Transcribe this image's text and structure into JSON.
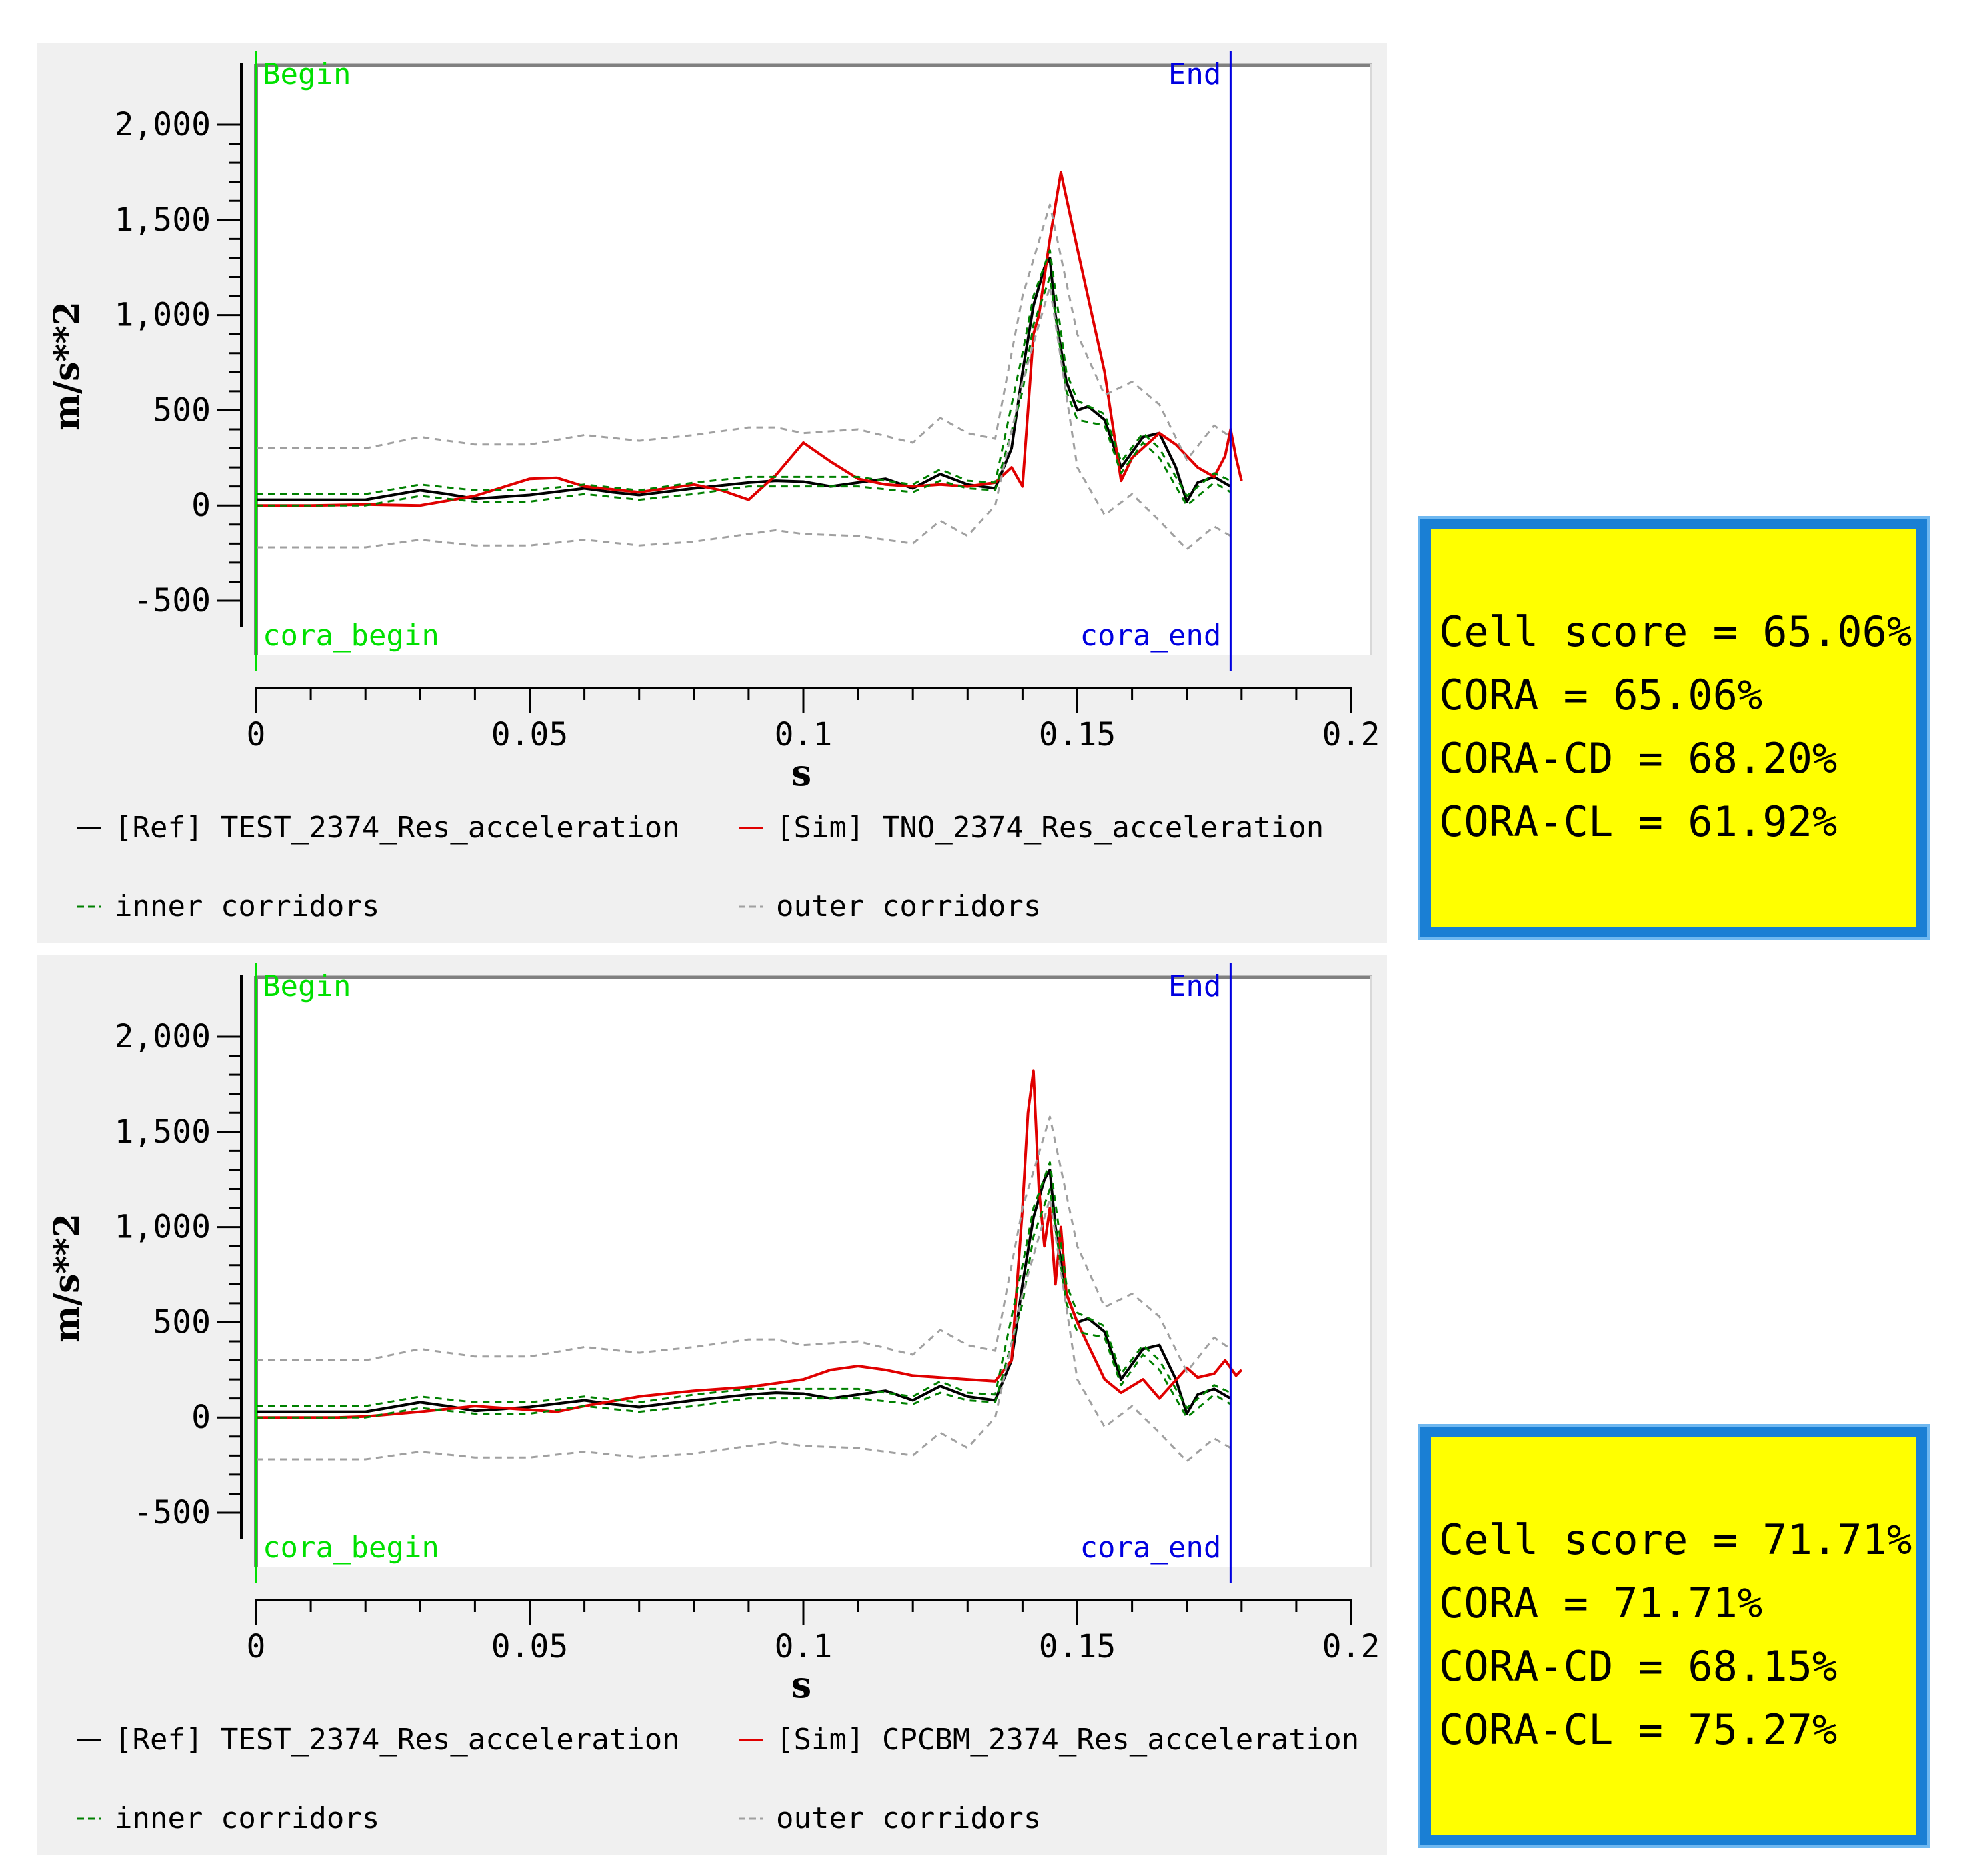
{
  "chart_data": [
    {
      "type": "line",
      "xlabel": "s",
      "ylabel": "m/s**2",
      "xlim": [
        0,
        0.2
      ],
      "ylim": [
        -500,
        2000
      ],
      "xticks": [
        "0",
        "0.05",
        "0.1",
        "0.15",
        "0.2"
      ],
      "yticks": [
        "2,000",
        "1,500",
        "1,000",
        "500",
        "0",
        "-500"
      ],
      "markers": [
        {
          "x": 0,
          "top_label": "Begin",
          "bottom_label": "cora_begin",
          "color": "#00e000"
        },
        {
          "x": 0.178,
          "top_label": "End",
          "bottom_label": "cora_end",
          "color": "#0000e0"
        }
      ],
      "legend": [
        {
          "label": "[Ref]  TEST_2374_Res_acceleration",
          "color": "#000000",
          "dash": "solid"
        },
        {
          "label": "[Sim]  TNO_2374_Res_acceleration",
          "color": "#e00000",
          "dash": "solid"
        },
        {
          "label": "inner corridors",
          "color": "#008000",
          "dash": "dashed"
        },
        {
          "label": "outer corridors",
          "color": "#a0a0a0",
          "dash": "dashed"
        }
      ],
      "series": [
        {
          "name": "[Ref]  TEST_2374_Res_acceleration",
          "color": "#000000",
          "x": [
            0,
            0.01,
            0.02,
            0.025,
            0.03,
            0.035,
            0.04,
            0.05,
            0.06,
            0.065,
            0.07,
            0.08,
            0.09,
            0.095,
            0.1,
            0.105,
            0.11,
            0.115,
            0.12,
            0.125,
            0.13,
            0.135,
            0.138,
            0.14,
            0.142,
            0.144,
            0.145,
            0.146,
            0.148,
            0.15,
            0.152,
            0.155,
            0.158,
            0.162,
            0.165,
            0.168,
            0.17,
            0.172,
            0.175,
            0.178
          ],
          "y": [
            30,
            30,
            30,
            55,
            80,
            60,
            35,
            55,
            90,
            70,
            55,
            90,
            120,
            130,
            125,
            100,
            120,
            140,
            90,
            165,
            110,
            90,
            300,
            700,
            1050,
            1250,
            1300,
            1000,
            650,
            500,
            520,
            450,
            200,
            360,
            380,
            200,
            20,
            120,
            150,
            100
          ]
        },
        {
          "name": "[Sim]  TNO_2374_Res_acceleration",
          "color": "#e00000",
          "x": [
            0,
            0.01,
            0.02,
            0.03,
            0.04,
            0.05,
            0.055,
            0.06,
            0.07,
            0.08,
            0.085,
            0.09,
            0.095,
            0.1,
            0.105,
            0.11,
            0.115,
            0.12,
            0.125,
            0.13,
            0.135,
            0.138,
            0.14,
            0.142,
            0.143,
            0.145,
            0.147,
            0.15,
            0.155,
            0.158,
            0.16,
            0.165,
            0.168,
            0.172,
            0.175,
            0.177,
            0.178,
            0.179,
            0.18
          ],
          "y": [
            0,
            0,
            5,
            0,
            50,
            140,
            145,
            100,
            70,
            110,
            80,
            30,
            160,
            330,
            230,
            140,
            110,
            100,
            110,
            100,
            120,
            200,
            100,
            900,
            1000,
            1400,
            1750,
            1350,
            700,
            130,
            250,
            380,
            320,
            200,
            150,
            260,
            400,
            250,
            130
          ]
        },
        {
          "name": "",
          "color": "#008000",
          "dash": true,
          "x": [
            0,
            0.02,
            0.03,
            0.04,
            0.05,
            0.06,
            0.07,
            0.08,
            0.09,
            0.1,
            0.11,
            0.12,
            0.125,
            0.13,
            0.135,
            0.14,
            0.142,
            0.145,
            0.148,
            0.15,
            0.155,
            0.158,
            0.162,
            0.165,
            0.17,
            0.175,
            0.178
          ],
          "y": [
            60,
            60,
            110,
            80,
            80,
            110,
            80,
            120,
            150,
            150,
            150,
            110,
            190,
            130,
            120,
            800,
            1100,
            1340,
            700,
            550,
            480,
            230,
            380,
            300,
            50,
            170,
            130
          ]
        },
        {
          "name": "",
          "color": "#008000",
          "dash": true,
          "x": [
            0,
            0.02,
            0.03,
            0.04,
            0.05,
            0.06,
            0.07,
            0.08,
            0.09,
            0.1,
            0.11,
            0.12,
            0.125,
            0.13,
            0.135,
            0.14,
            0.142,
            0.145,
            0.148,
            0.15,
            0.155,
            0.158,
            0.162,
            0.165,
            0.17,
            0.175,
            0.178
          ],
          "y": [
            0,
            0,
            50,
            20,
            20,
            60,
            30,
            60,
            100,
            100,
            100,
            70,
            130,
            90,
            80,
            600,
            950,
            1200,
            600,
            450,
            420,
            170,
            330,
            250,
            0,
            120,
            70
          ]
        },
        {
          "name": "",
          "color": "#a0a0a0",
          "dash": true,
          "x": [
            0,
            0.02,
            0.03,
            0.04,
            0.05,
            0.06,
            0.07,
            0.08,
            0.09,
            0.095,
            0.1,
            0.11,
            0.12,
            0.125,
            0.13,
            0.135,
            0.14,
            0.145,
            0.15,
            0.155,
            0.16,
            0.165,
            0.17,
            0.175,
            0.178
          ],
          "y": [
            300,
            300,
            360,
            320,
            320,
            370,
            340,
            370,
            410,
            410,
            380,
            400,
            330,
            460,
            380,
            350,
            1100,
            1580,
            900,
            580,
            650,
            530,
            240,
            420,
            360
          ]
        },
        {
          "name": "",
          "color": "#a0a0a0",
          "dash": true,
          "x": [
            0,
            0.02,
            0.03,
            0.04,
            0.05,
            0.06,
            0.07,
            0.08,
            0.09,
            0.095,
            0.1,
            0.11,
            0.12,
            0.125,
            0.13,
            0.135,
            0.14,
            0.145,
            0.15,
            0.155,
            0.16,
            0.165,
            0.17,
            0.175,
            0.178
          ],
          "y": [
            -220,
            -220,
            -180,
            -210,
            -210,
            -180,
            -210,
            -190,
            -150,
            -130,
            -150,
            -160,
            -200,
            -80,
            -160,
            0,
            650,
            1150,
            200,
            -50,
            60,
            -80,
            -230,
            -110,
            -160
          ]
        }
      ]
    },
    {
      "type": "line",
      "xlabel": "s",
      "ylabel": "m/s**2",
      "xlim": [
        0,
        0.2
      ],
      "ylim": [
        -500,
        2000
      ],
      "xticks": [
        "0",
        "0.05",
        "0.1",
        "0.15",
        "0.2"
      ],
      "yticks": [
        "2,000",
        "1,500",
        "1,000",
        "500",
        "0",
        "-500"
      ],
      "markers": [
        {
          "x": 0,
          "top_label": "Begin",
          "bottom_label": "cora_begin",
          "color": "#00e000"
        },
        {
          "x": 0.178,
          "top_label": "End",
          "bottom_label": "cora_end",
          "color": "#0000e0"
        }
      ],
      "legend": [
        {
          "label": "[Ref]  TEST_2374_Res_acceleration",
          "color": "#000000",
          "dash": "solid"
        },
        {
          "label": "[Sim]  CPCBM_2374_Res_acceleration",
          "color": "#e00000",
          "dash": "solid"
        },
        {
          "label": "inner corridors",
          "color": "#008000",
          "dash": "dashed"
        },
        {
          "label": "outer corridors",
          "color": "#a0a0a0",
          "dash": "dashed"
        }
      ],
      "series": [
        {
          "name": "[Ref]  TEST_2374_Res_acceleration",
          "color": "#000000",
          "x": [
            0,
            0.01,
            0.02,
            0.025,
            0.03,
            0.035,
            0.04,
            0.05,
            0.06,
            0.065,
            0.07,
            0.08,
            0.09,
            0.095,
            0.1,
            0.105,
            0.11,
            0.115,
            0.12,
            0.125,
            0.13,
            0.135,
            0.138,
            0.14,
            0.142,
            0.144,
            0.145,
            0.146,
            0.148,
            0.15,
            0.152,
            0.155,
            0.158,
            0.162,
            0.165,
            0.168,
            0.17,
            0.172,
            0.175,
            0.178
          ],
          "y": [
            30,
            30,
            30,
            55,
            80,
            60,
            35,
            55,
            90,
            70,
            55,
            90,
            120,
            130,
            125,
            100,
            120,
            140,
            90,
            165,
            110,
            90,
            300,
            700,
            1050,
            1250,
            1300,
            1000,
            650,
            500,
            520,
            450,
            200,
            360,
            380,
            200,
            20,
            120,
            150,
            100
          ]
        },
        {
          "name": "[Sim]  CPCBM_2374_Res_acceleration",
          "color": "#e00000",
          "x": [
            0,
            0.015,
            0.02,
            0.03,
            0.04,
            0.05,
            0.055,
            0.06,
            0.07,
            0.08,
            0.09,
            0.1,
            0.105,
            0.11,
            0.115,
            0.12,
            0.125,
            0.13,
            0.135,
            0.138,
            0.14,
            0.141,
            0.142,
            0.143,
            0.144,
            0.145,
            0.146,
            0.147,
            0.148,
            0.15,
            0.155,
            0.158,
            0.162,
            0.165,
            0.17,
            0.172,
            0.175,
            0.177,
            0.179,
            0.18
          ],
          "y": [
            0,
            0,
            5,
            30,
            60,
            40,
            30,
            60,
            110,
            140,
            160,
            200,
            250,
            270,
            250,
            220,
            210,
            200,
            190,
            300,
            1100,
            1600,
            1820,
            1200,
            900,
            1100,
            700,
            1000,
            650,
            500,
            200,
            130,
            200,
            100,
            260,
            210,
            230,
            300,
            220,
            250
          ]
        },
        {
          "name": "",
          "color": "#008000",
          "dash": true,
          "x": [
            0,
            0.02,
            0.03,
            0.04,
            0.05,
            0.06,
            0.07,
            0.08,
            0.09,
            0.1,
            0.11,
            0.12,
            0.125,
            0.13,
            0.135,
            0.14,
            0.142,
            0.145,
            0.148,
            0.15,
            0.155,
            0.158,
            0.162,
            0.165,
            0.17,
            0.175,
            0.178
          ],
          "y": [
            60,
            60,
            110,
            80,
            80,
            110,
            80,
            120,
            150,
            150,
            150,
            110,
            190,
            130,
            120,
            800,
            1100,
            1340,
            700,
            550,
            480,
            230,
            380,
            300,
            50,
            170,
            130
          ]
        },
        {
          "name": "",
          "color": "#008000",
          "dash": true,
          "x": [
            0,
            0.02,
            0.03,
            0.04,
            0.05,
            0.06,
            0.07,
            0.08,
            0.09,
            0.1,
            0.11,
            0.12,
            0.125,
            0.13,
            0.135,
            0.14,
            0.142,
            0.145,
            0.148,
            0.15,
            0.155,
            0.158,
            0.162,
            0.165,
            0.17,
            0.175,
            0.178
          ],
          "y": [
            0,
            0,
            50,
            20,
            20,
            60,
            30,
            60,
            100,
            100,
            100,
            70,
            130,
            90,
            80,
            600,
            950,
            1200,
            600,
            450,
            420,
            170,
            330,
            250,
            0,
            120,
            70
          ]
        },
        {
          "name": "",
          "color": "#a0a0a0",
          "dash": true,
          "x": [
            0,
            0.02,
            0.03,
            0.04,
            0.05,
            0.06,
            0.07,
            0.08,
            0.09,
            0.095,
            0.1,
            0.11,
            0.12,
            0.125,
            0.13,
            0.135,
            0.14,
            0.145,
            0.15,
            0.155,
            0.16,
            0.165,
            0.17,
            0.175,
            0.178
          ],
          "y": [
            300,
            300,
            360,
            320,
            320,
            370,
            340,
            370,
            410,
            410,
            380,
            400,
            330,
            460,
            380,
            350,
            1100,
            1580,
            900,
            580,
            650,
            530,
            240,
            420,
            360
          ]
        },
        {
          "name": "",
          "color": "#a0a0a0",
          "dash": true,
          "x": [
            0,
            0.02,
            0.03,
            0.04,
            0.05,
            0.06,
            0.07,
            0.08,
            0.09,
            0.095,
            0.1,
            0.11,
            0.12,
            0.125,
            0.13,
            0.135,
            0.14,
            0.145,
            0.15,
            0.155,
            0.16,
            0.165,
            0.17,
            0.175,
            0.178
          ],
          "y": [
            -220,
            -220,
            -180,
            -210,
            -210,
            -180,
            -210,
            -190,
            -150,
            -130,
            -150,
            -160,
            -200,
            -80,
            -160,
            0,
            650,
            1150,
            200,
            -50,
            60,
            -80,
            -230,
            -110,
            -160
          ]
        }
      ]
    }
  ],
  "scores": [
    {
      "cell_score": "Cell score = 65.06%",
      "cora": "CORA = 65.06%",
      "cora_cd": "CORA-CD = 68.20%",
      "cora_cl": "CORA-CL = 61.92%"
    },
    {
      "cell_score": "Cell score = 71.71%",
      "cora": "CORA = 71.71%",
      "cora_cd": "CORA-CD = 68.15%",
      "cora_cl": "CORA-CL = 75.27%"
    }
  ],
  "colors": {
    "score_box_bg": "#ffff00",
    "score_box_border": "#1a7fd4"
  }
}
